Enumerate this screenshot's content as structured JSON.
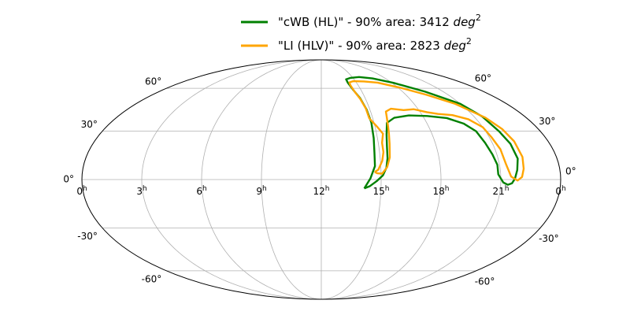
{
  "chart_data": {
    "type": "line",
    "projection": "mollweide",
    "grid": true,
    "legend_position": "top-center",
    "x_tick_labels": [
      {
        "ra_hours": 24,
        "text": "0",
        "sup": "h"
      },
      {
        "ra_hours": 21,
        "text": "21",
        "sup": "h"
      },
      {
        "ra_hours": 18,
        "text": "18",
        "sup": "h"
      },
      {
        "ra_hours": 15,
        "text": "15",
        "sup": "h"
      },
      {
        "ra_hours": 12,
        "text": "12",
        "sup": "h"
      },
      {
        "ra_hours": 9,
        "text": "9",
        "sup": "h"
      },
      {
        "ra_hours": 6,
        "text": "6",
        "sup": "h"
      },
      {
        "ra_hours": 3,
        "text": "3",
        "sup": "h"
      },
      {
        "ra_hours": 0,
        "text": "0",
        "sup": "h"
      }
    ],
    "y_tick_labels": [
      {
        "dec": 60,
        "text": "60°"
      },
      {
        "dec": 30,
        "text": "30°"
      },
      {
        "dec": 0,
        "text": "0°"
      },
      {
        "dec": -30,
        "text": "-30°"
      },
      {
        "dec": -60,
        "text": "-60°"
      }
    ],
    "series": [
      {
        "name": "\"cWB (HL)\" - 90% area: 3412 deg",
        "name_sup": "2",
        "color": "#008000",
        "contours": [
          [
            [
              212.4,
              -5.4
            ],
            [
              217.0,
              0.8
            ],
            [
              220.6,
              8.2
            ],
            [
              221.0,
              16.4
            ],
            [
              222.0,
              25.6
            ],
            [
              222.8,
              35.6
            ],
            [
              222.0,
              44.4
            ],
            [
              219.8,
              52.6
            ],
            [
              216.4,
              58.4
            ],
            [
              213.9,
              64.4
            ],
            [
              214.1,
              67.4
            ],
            [
              221.0,
              68.6
            ],
            [
              235.0,
              69.4
            ],
            [
              252.0,
              68.2
            ],
            [
              272.0,
              64.4
            ],
            [
              295.0,
              57.4
            ],
            [
              315.0,
              48.4
            ],
            [
              322.4,
              39.6
            ],
            [
              326.0,
              30.0
            ],
            [
              329.0,
              22.0
            ],
            [
              330.0,
              12.8
            ],
            [
              327.8,
              5.8
            ],
            [
              325.6,
              0.5
            ],
            [
              323.4,
              -2.3
            ],
            [
              320.4,
              -3.2
            ],
            [
              316.9,
              -1.8
            ],
            [
              313.2,
              3.2
            ],
            [
              313.4,
              9.0
            ],
            [
              311.6,
              15.4
            ],
            [
              309.4,
              22.6
            ],
            [
              307.2,
              30.0
            ],
            [
              301.0,
              35.0
            ],
            [
              290.0,
              38.6
            ],
            [
              274.0,
              40.0
            ],
            [
              258.0,
              40.4
            ],
            [
              244.0,
              38.8
            ],
            [
              236.0,
              35.4
            ],
            [
              233.0,
              28.0
            ],
            [
              231.4,
              20.6
            ],
            [
              230.6,
              13.0
            ],
            [
              229.2,
              7.2
            ],
            [
              226.4,
              2.6
            ],
            [
              221.6,
              -1.0
            ],
            [
              216.6,
              -4.0
            ],
            [
              212.4,
              -5.4
            ]
          ]
        ]
      },
      {
        "name": "\"LI (HLV)\" - 90% area: 2823 deg",
        "name_sup": "2",
        "color": "#ffa500",
        "contours": [
          [
            [
              220.2,
              4.6
            ],
            [
              223.0,
              6.0
            ],
            [
              226.4,
              11.4
            ],
            [
              228.0,
              16.8
            ],
            [
              228.0,
              22.6
            ],
            [
              230.2,
              28.4
            ],
            [
              227.0,
              32.6
            ],
            [
              222.0,
              38.4
            ],
            [
              221.6,
              45.2
            ],
            [
              219.6,
              52.0
            ],
            [
              216.9,
              57.4
            ],
            [
              215.5,
              62.6
            ],
            [
              216.2,
              64.8
            ],
            [
              222.0,
              65.8
            ],
            [
              236.0,
              65.6
            ],
            [
              252.0,
              64.6
            ],
            [
              272.0,
              60.6
            ],
            [
              292.0,
              55.0
            ],
            [
              310.0,
              48.4
            ],
            [
              324.0,
              39.0
            ],
            [
              330.0,
              31.4
            ],
            [
              333.0,
              23.6
            ],
            [
              334.0,
              13.8
            ],
            [
              332.8,
              6.6
            ],
            [
              331.0,
              1.6
            ],
            [
              327.6,
              -0.6
            ],
            [
              322.8,
              1.8
            ],
            [
              320.0,
              9.6
            ],
            [
              319.2,
              18.6
            ],
            [
              316.8,
              26.2
            ],
            [
              315.0,
              32.6
            ],
            [
              308.0,
              37.8
            ],
            [
              297.0,
              40.6
            ],
            [
              285.0,
              41.4
            ],
            [
              276.0,
              42.6
            ],
            [
              266.0,
              44.6
            ],
            [
              256.0,
              44.0
            ],
            [
              245.0,
              45.0
            ],
            [
              239.0,
              43.0
            ],
            [
              237.5,
              38.6
            ],
            [
              236.0,
              33.0
            ],
            [
              235.0,
              28.2
            ],
            [
              233.8,
              22.0
            ],
            [
              232.4,
              13.6
            ],
            [
              229.8,
              7.6
            ],
            [
              225.8,
              3.6
            ],
            [
              222.2,
              3.8
            ],
            [
              220.2,
              4.6
            ]
          ]
        ]
      }
    ]
  }
}
